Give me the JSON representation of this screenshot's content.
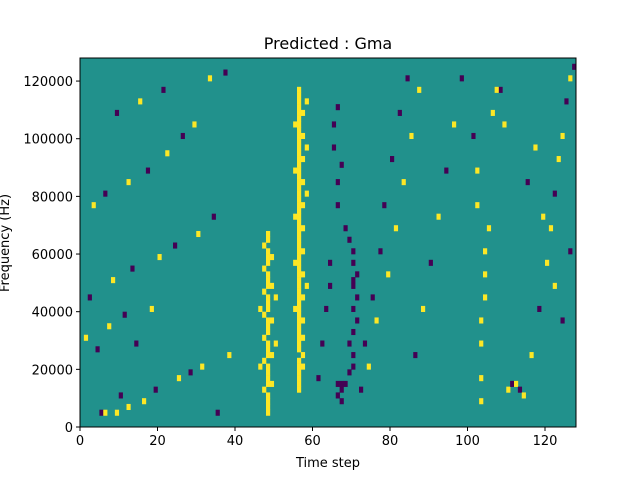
{
  "chart_data": {
    "type": "heatmap",
    "title": "Predicted : Gma",
    "xlabel": "Time step",
    "ylabel": "Frequency (Hz)",
    "xlim": [
      0,
      128
    ],
    "ylim": [
      0,
      128000
    ],
    "x_ticks": [
      0,
      20,
      40,
      60,
      80,
      100,
      120
    ],
    "y_ticks": [
      0,
      20000,
      40000,
      60000,
      80000,
      100000,
      120000
    ],
    "grid": false,
    "legend": "none",
    "n_time_steps": 128,
    "n_freq_bins": 64,
    "bin_width_hz": 2000,
    "value_levels": [
      -1,
      0,
      1
    ],
    "colors": {
      "-1": "#440154",
      "0": "#21918c",
      "1": "#fde725"
    },
    "cells": [
      {
        "x": 5,
        "y": 2,
        "v": -1
      },
      {
        "x": 6,
        "y": 2,
        "v": 1
      },
      {
        "x": 9,
        "y": 2,
        "v": 1
      },
      {
        "x": 12,
        "y": 3,
        "v": 1
      },
      {
        "x": 10,
        "y": 5,
        "v": -1
      },
      {
        "x": 16,
        "y": 4,
        "v": 1
      },
      {
        "x": 19,
        "y": 6,
        "v": -1
      },
      {
        "x": 25,
        "y": 8,
        "v": 1
      },
      {
        "x": 28,
        "y": 9,
        "v": -1
      },
      {
        "x": 31,
        "y": 10,
        "v": 1
      },
      {
        "x": 35,
        "y": 2,
        "v": -1
      },
      {
        "x": 38,
        "y": 12,
        "v": 1
      },
      {
        "x": 14,
        "y": 14,
        "v": -1
      },
      {
        "x": 4,
        "y": 13,
        "v": -1
      },
      {
        "x": 1,
        "y": 15,
        "v": 1
      },
      {
        "x": 7,
        "y": 17,
        "v": 1
      },
      {
        "x": 11,
        "y": 19,
        "v": -1
      },
      {
        "x": 18,
        "y": 20,
        "v": 1
      },
      {
        "x": 2,
        "y": 22,
        "v": -1
      },
      {
        "x": 8,
        "y": 25,
        "v": 1
      },
      {
        "x": 13,
        "y": 27,
        "v": -1
      },
      {
        "x": 20,
        "y": 29,
        "v": 1
      },
      {
        "x": 24,
        "y": 31,
        "v": -1
      },
      {
        "x": 30,
        "y": 33,
        "v": 1
      },
      {
        "x": 34,
        "y": 36,
        "v": -1
      },
      {
        "x": 3,
        "y": 38,
        "v": 1
      },
      {
        "x": 6,
        "y": 40,
        "v": -1
      },
      {
        "x": 12,
        "y": 42,
        "v": 1
      },
      {
        "x": 17,
        "y": 44,
        "v": -1
      },
      {
        "x": 22,
        "y": 47,
        "v": 1
      },
      {
        "x": 26,
        "y": 50,
        "v": -1
      },
      {
        "x": 29,
        "y": 52,
        "v": 1
      },
      {
        "x": 9,
        "y": 54,
        "v": -1
      },
      {
        "x": 15,
        "y": 56,
        "v": 1
      },
      {
        "x": 21,
        "y": 58,
        "v": -1
      },
      {
        "x": 33,
        "y": 60,
        "v": 1
      },
      {
        "x": 37,
        "y": 61,
        "v": -1
      },
      {
        "x": 48,
        "y": 2,
        "v": 1
      },
      {
        "x": 48,
        "y": 3,
        "v": 1
      },
      {
        "x": 48,
        "y": 4,
        "v": 1
      },
      {
        "x": 48,
        "y": 5,
        "v": 1
      },
      {
        "x": 48,
        "y": 7,
        "v": 1
      },
      {
        "x": 48,
        "y": 8,
        "v": 1
      },
      {
        "x": 48,
        "y": 9,
        "v": 1
      },
      {
        "x": 48,
        "y": 10,
        "v": 1
      },
      {
        "x": 48,
        "y": 12,
        "v": 1
      },
      {
        "x": 48,
        "y": 13,
        "v": 1
      },
      {
        "x": 48,
        "y": 14,
        "v": 1
      },
      {
        "x": 48,
        "y": 16,
        "v": 1
      },
      {
        "x": 48,
        "y": 17,
        "v": 1
      },
      {
        "x": 48,
        "y": 18,
        "v": 1
      },
      {
        "x": 48,
        "y": 20,
        "v": 1
      },
      {
        "x": 48,
        "y": 21,
        "v": 1
      },
      {
        "x": 48,
        "y": 22,
        "v": 1
      },
      {
        "x": 48,
        "y": 24,
        "v": 1
      },
      {
        "x": 48,
        "y": 25,
        "v": 1
      },
      {
        "x": 48,
        "y": 26,
        "v": 1
      },
      {
        "x": 48,
        "y": 28,
        "v": 1
      },
      {
        "x": 48,
        "y": 29,
        "v": 1
      },
      {
        "x": 48,
        "y": 30,
        "v": 1
      },
      {
        "x": 48,
        "y": 32,
        "v": 1
      },
      {
        "x": 48,
        "y": 33,
        "v": 1
      },
      {
        "x": 47,
        "y": 6,
        "v": 1
      },
      {
        "x": 47,
        "y": 11,
        "v": 1
      },
      {
        "x": 47,
        "y": 15,
        "v": 1
      },
      {
        "x": 47,
        "y": 19,
        "v": 1
      },
      {
        "x": 47,
        "y": 23,
        "v": 1
      },
      {
        "x": 47,
        "y": 27,
        "v": 1
      },
      {
        "x": 47,
        "y": 31,
        "v": 1
      },
      {
        "x": 49,
        "y": 7,
        "v": 1
      },
      {
        "x": 49,
        "y": 12,
        "v": 1
      },
      {
        "x": 49,
        "y": 18,
        "v": 1
      },
      {
        "x": 49,
        "y": 24,
        "v": 1
      },
      {
        "x": 49,
        "y": 29,
        "v": 1
      },
      {
        "x": 46,
        "y": 10,
        "v": 1
      },
      {
        "x": 46,
        "y": 20,
        "v": 1
      },
      {
        "x": 50,
        "y": 14,
        "v": 1
      },
      {
        "x": 50,
        "y": 22,
        "v": 1
      },
      {
        "x": 56,
        "y": 6,
        "v": 1
      },
      {
        "x": 56,
        "y": 7,
        "v": 1
      },
      {
        "x": 56,
        "y": 8,
        "v": 1
      },
      {
        "x": 56,
        "y": 9,
        "v": 1
      },
      {
        "x": 56,
        "y": 10,
        "v": 1
      },
      {
        "x": 56,
        "y": 11,
        "v": 1
      },
      {
        "x": 56,
        "y": 13,
        "v": 1
      },
      {
        "x": 56,
        "y": 14,
        "v": 1
      },
      {
        "x": 56,
        "y": 15,
        "v": 1
      },
      {
        "x": 56,
        "y": 16,
        "v": 1
      },
      {
        "x": 56,
        "y": 17,
        "v": 1
      },
      {
        "x": 56,
        "y": 18,
        "v": 1
      },
      {
        "x": 56,
        "y": 19,
        "v": 1
      },
      {
        "x": 56,
        "y": 20,
        "v": 1
      },
      {
        "x": 56,
        "y": 21,
        "v": 1
      },
      {
        "x": 56,
        "y": 22,
        "v": 1
      },
      {
        "x": 56,
        "y": 23,
        "v": 1
      },
      {
        "x": 56,
        "y": 24,
        "v": 1
      },
      {
        "x": 56,
        "y": 25,
        "v": 1
      },
      {
        "x": 56,
        "y": 26,
        "v": 1
      },
      {
        "x": 56,
        "y": 27,
        "v": 1
      },
      {
        "x": 56,
        "y": 28,
        "v": 1
      },
      {
        "x": 56,
        "y": 29,
        "v": 1
      },
      {
        "x": 56,
        "y": 30,
        "v": 1
      },
      {
        "x": 56,
        "y": 31,
        "v": 1
      },
      {
        "x": 56,
        "y": 32,
        "v": 1
      },
      {
        "x": 56,
        "y": 33,
        "v": 1
      },
      {
        "x": 56,
        "y": 34,
        "v": 1
      },
      {
        "x": 56,
        "y": 35,
        "v": 1
      },
      {
        "x": 56,
        "y": 36,
        "v": 1
      },
      {
        "x": 56,
        "y": 37,
        "v": 1
      },
      {
        "x": 56,
        "y": 38,
        "v": 1
      },
      {
        "x": 56,
        "y": 39,
        "v": 1
      },
      {
        "x": 56,
        "y": 40,
        "v": 1
      },
      {
        "x": 56,
        "y": 41,
        "v": 1
      },
      {
        "x": 56,
        "y": 42,
        "v": 1
      },
      {
        "x": 56,
        "y": 43,
        "v": 1
      },
      {
        "x": 56,
        "y": 44,
        "v": 1
      },
      {
        "x": 56,
        "y": 45,
        "v": 1
      },
      {
        "x": 56,
        "y": 46,
        "v": 1
      },
      {
        "x": 56,
        "y": 47,
        "v": 1
      },
      {
        "x": 56,
        "y": 48,
        "v": 1
      },
      {
        "x": 56,
        "y": 49,
        "v": 1
      },
      {
        "x": 56,
        "y": 50,
        "v": 1
      },
      {
        "x": 56,
        "y": 51,
        "v": 1
      },
      {
        "x": 56,
        "y": 52,
        "v": 1
      },
      {
        "x": 56,
        "y": 53,
        "v": 1
      },
      {
        "x": 56,
        "y": 54,
        "v": 1
      },
      {
        "x": 56,
        "y": 55,
        "v": 1
      },
      {
        "x": 56,
        "y": 56,
        "v": 1
      },
      {
        "x": 56,
        "y": 57,
        "v": 1
      },
      {
        "x": 56,
        "y": 58,
        "v": 1
      },
      {
        "x": 57,
        "y": 10,
        "v": 1
      },
      {
        "x": 57,
        "y": 12,
        "v": 1
      },
      {
        "x": 57,
        "y": 15,
        "v": 1
      },
      {
        "x": 57,
        "y": 18,
        "v": 1
      },
      {
        "x": 57,
        "y": 22,
        "v": 1
      },
      {
        "x": 57,
        "y": 26,
        "v": 1
      },
      {
        "x": 57,
        "y": 30,
        "v": 1
      },
      {
        "x": 57,
        "y": 34,
        "v": 1
      },
      {
        "x": 57,
        "y": 38,
        "v": 1
      },
      {
        "x": 57,
        "y": 42,
        "v": 1
      },
      {
        "x": 57,
        "y": 46,
        "v": 1
      },
      {
        "x": 57,
        "y": 50,
        "v": 1
      },
      {
        "x": 57,
        "y": 54,
        "v": 1
      },
      {
        "x": 55,
        "y": 20,
        "v": 1
      },
      {
        "x": 55,
        "y": 28,
        "v": 1
      },
      {
        "x": 55,
        "y": 36,
        "v": 1
      },
      {
        "x": 55,
        "y": 44,
        "v": 1
      },
      {
        "x": 55,
        "y": 52,
        "v": 1
      },
      {
        "x": 58,
        "y": 24,
        "v": 1
      },
      {
        "x": 58,
        "y": 40,
        "v": 1
      },
      {
        "x": 58,
        "y": 48,
        "v": 1
      },
      {
        "x": 58,
        "y": 56,
        "v": 1
      },
      {
        "x": 67,
        "y": 4,
        "v": -1
      },
      {
        "x": 67,
        "y": 6,
        "v": -1
      },
      {
        "x": 67,
        "y": 7,
        "v": -1
      },
      {
        "x": 68,
        "y": 7,
        "v": -1
      },
      {
        "x": 66,
        "y": 7,
        "v": -1
      },
      {
        "x": 66,
        "y": 5,
        "v": -1
      },
      {
        "x": 69,
        "y": 9,
        "v": -1
      },
      {
        "x": 70,
        "y": 10,
        "v": -1
      },
      {
        "x": 70,
        "y": 12,
        "v": -1
      },
      {
        "x": 70,
        "y": 16,
        "v": -1
      },
      {
        "x": 70,
        "y": 20,
        "v": -1
      },
      {
        "x": 70,
        "y": 24,
        "v": -1
      },
      {
        "x": 70,
        "y": 25,
        "v": -1
      },
      {
        "x": 70,
        "y": 28,
        "v": -1
      },
      {
        "x": 70,
        "y": 30,
        "v": -1
      },
      {
        "x": 71,
        "y": 26,
        "v": -1
      },
      {
        "x": 71,
        "y": 22,
        "v": -1
      },
      {
        "x": 71,
        "y": 18,
        "v": -1
      },
      {
        "x": 69,
        "y": 14,
        "v": -1
      },
      {
        "x": 69,
        "y": 32,
        "v": -1
      },
      {
        "x": 68,
        "y": 34,
        "v": -1
      },
      {
        "x": 66,
        "y": 38,
        "v": -1
      },
      {
        "x": 66,
        "y": 42,
        "v": -1
      },
      {
        "x": 67,
        "y": 45,
        "v": -1
      },
      {
        "x": 65,
        "y": 48,
        "v": -1
      },
      {
        "x": 65,
        "y": 52,
        "v": -1
      },
      {
        "x": 66,
        "y": 55,
        "v": -1
      },
      {
        "x": 64,
        "y": 28,
        "v": -1
      },
      {
        "x": 64,
        "y": 24,
        "v": -1
      },
      {
        "x": 63,
        "y": 20,
        "v": -1
      },
      {
        "x": 62,
        "y": 14,
        "v": -1
      },
      {
        "x": 61,
        "y": 8,
        "v": -1
      },
      {
        "x": 72,
        "y": 6,
        "v": -1
      },
      {
        "x": 73,
        "y": 14,
        "v": -1
      },
      {
        "x": 75,
        "y": 22,
        "v": -1
      },
      {
        "x": 77,
        "y": 30,
        "v": -1
      },
      {
        "x": 78,
        "y": 38,
        "v": -1
      },
      {
        "x": 80,
        "y": 46,
        "v": -1
      },
      {
        "x": 82,
        "y": 54,
        "v": -1
      },
      {
        "x": 84,
        "y": 60,
        "v": -1
      },
      {
        "x": 74,
        "y": 10,
        "v": 1
      },
      {
        "x": 76,
        "y": 18,
        "v": 1
      },
      {
        "x": 79,
        "y": 26,
        "v": 1
      },
      {
        "x": 81,
        "y": 34,
        "v": 1
      },
      {
        "x": 83,
        "y": 42,
        "v": 1
      },
      {
        "x": 85,
        "y": 50,
        "v": 1
      },
      {
        "x": 87,
        "y": 58,
        "v": 1
      },
      {
        "x": 86,
        "y": 12,
        "v": -1
      },
      {
        "x": 88,
        "y": 20,
        "v": 1
      },
      {
        "x": 90,
        "y": 28,
        "v": -1
      },
      {
        "x": 92,
        "y": 36,
        "v": 1
      },
      {
        "x": 94,
        "y": 44,
        "v": -1
      },
      {
        "x": 96,
        "y": 52,
        "v": 1
      },
      {
        "x": 98,
        "y": 60,
        "v": -1
      },
      {
        "x": 103,
        "y": 4,
        "v": 1
      },
      {
        "x": 103,
        "y": 8,
        "v": 1
      },
      {
        "x": 103,
        "y": 14,
        "v": 1
      },
      {
        "x": 103,
        "y": 18,
        "v": 1
      },
      {
        "x": 104,
        "y": 22,
        "v": 1
      },
      {
        "x": 104,
        "y": 26,
        "v": 1
      },
      {
        "x": 104,
        "y": 30,
        "v": 1
      },
      {
        "x": 105,
        "y": 34,
        "v": 1
      },
      {
        "x": 102,
        "y": 38,
        "v": 1
      },
      {
        "x": 102,
        "y": 44,
        "v": 1
      },
      {
        "x": 101,
        "y": 50,
        "v": -1
      },
      {
        "x": 106,
        "y": 54,
        "v": 1
      },
      {
        "x": 108,
        "y": 58,
        "v": -1
      },
      {
        "x": 110,
        "y": 6,
        "v": 1
      },
      {
        "x": 111,
        "y": 7,
        "v": -1
      },
      {
        "x": 112,
        "y": 7,
        "v": 1
      },
      {
        "x": 113,
        "y": 6,
        "v": -1
      },
      {
        "x": 114,
        "y": 5,
        "v": 1
      },
      {
        "x": 116,
        "y": 12,
        "v": 1
      },
      {
        "x": 118,
        "y": 20,
        "v": -1
      },
      {
        "x": 120,
        "y": 28,
        "v": 1
      },
      {
        "x": 121,
        "y": 34,
        "v": 1
      },
      {
        "x": 122,
        "y": 40,
        "v": -1
      },
      {
        "x": 123,
        "y": 46,
        "v": 1
      },
      {
        "x": 124,
        "y": 50,
        "v": 1
      },
      {
        "x": 125,
        "y": 56,
        "v": -1
      },
      {
        "x": 126,
        "y": 60,
        "v": 1
      },
      {
        "x": 127,
        "y": 62,
        "v": -1
      },
      {
        "x": 124,
        "y": 18,
        "v": -1
      },
      {
        "x": 122,
        "y": 24,
        "v": 1
      },
      {
        "x": 126,
        "y": 30,
        "v": -1
      },
      {
        "x": 119,
        "y": 36,
        "v": 1
      },
      {
        "x": 115,
        "y": 42,
        "v": -1
      },
      {
        "x": 117,
        "y": 48,
        "v": 1
      },
      {
        "x": 109,
        "y": 52,
        "v": 1
      },
      {
        "x": 107,
        "y": 58,
        "v": 1
      }
    ]
  }
}
